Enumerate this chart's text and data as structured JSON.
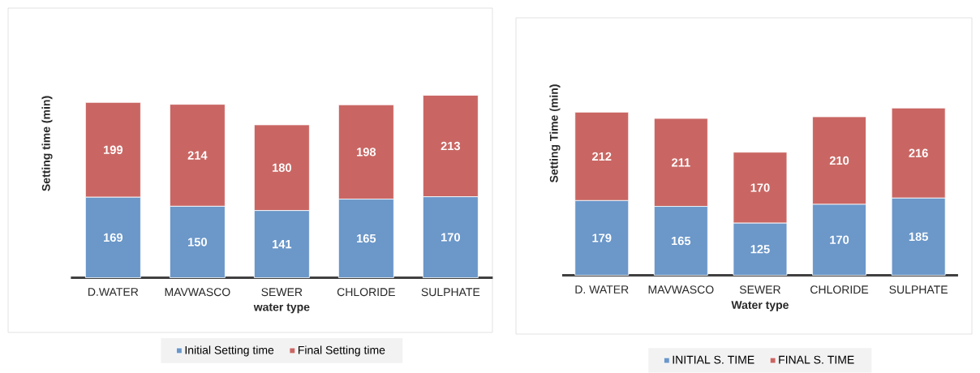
{
  "chart_data": [
    {
      "type": "bar",
      "stacked": true,
      "categories": [
        "D.WATER",
        "MAVWASCO",
        "SEWER",
        "CHLORIDE",
        "SULPHATE"
      ],
      "xlabel": "water type",
      "ylabel": "Setting time (min)",
      "tick_labels": "x",
      "data_labels": true,
      "legend": "bottom",
      "series": [
        {
          "name": "Initial Setting time",
          "color": "#6b97c9",
          "values": [
            169,
            150,
            141,
            165,
            170
          ]
        },
        {
          "name": "Final Setting time",
          "color": "#c96663",
          "values": [
            199,
            214,
            180,
            198,
            213
          ]
        }
      ]
    },
    {
      "type": "bar",
      "stacked": true,
      "categories": [
        "D. WATER",
        "MAVWASCO",
        "SEWER",
        "CHLORIDE",
        "SULPHATE"
      ],
      "xlabel": "Water type",
      "ylabel": "Setting Time (min)",
      "tick_labels": "x",
      "data_labels": true,
      "legend": "bottom",
      "series": [
        {
          "name": "INITIAL S. TIME",
          "color": "#6b97c9",
          "values": [
            179,
            165,
            125,
            170,
            185
          ]
        },
        {
          "name": "FINAL S. TIME",
          "color": "#c96663",
          "values": [
            212,
            211,
            170,
            210,
            216
          ]
        }
      ]
    }
  ]
}
